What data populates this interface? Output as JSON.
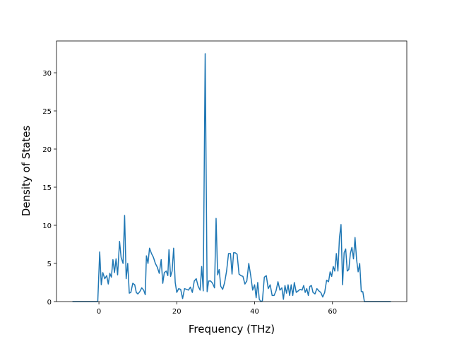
{
  "chart_data": {
    "type": "line",
    "xlabel": "Frequency (THz)",
    "ylabel": "Density of States",
    "xlim": [
      -10.9,
      79.1
    ],
    "ylim": [
      0,
      34.17
    ],
    "xticks": [
      0,
      20,
      40,
      60
    ],
    "yticks": [
      0,
      5,
      10,
      15,
      20,
      25,
      30
    ],
    "grid": false,
    "series": [
      {
        "color": "#1f77b4",
        "x": [
          -6.8,
          -0.3,
          0.2,
          0.6,
          1,
          1.5,
          2,
          2.4,
          2.8,
          3.2,
          3.6,
          4,
          4.4,
          4.8,
          5.3,
          5.7,
          6.2,
          6.6,
          7,
          7.4,
          7.8,
          8.2,
          8.7,
          9.2,
          9.6,
          10,
          10.5,
          11,
          11.5,
          11.9,
          12.2,
          12.6,
          13,
          13.5,
          14,
          14.5,
          15,
          15.5,
          16,
          16.4,
          16.8,
          17.3,
          17.7,
          18,
          18.4,
          18.8,
          19.2,
          19.6,
          20,
          20.5,
          21,
          21.5,
          22,
          22.5,
          23,
          23.5,
          24,
          24.5,
          25,
          25.5,
          26,
          26.4,
          26.8,
          27.3,
          27.8,
          28.2,
          28.7,
          29.2,
          29.7,
          30.1,
          30.5,
          30.9,
          31.3,
          31.8,
          32.3,
          32.8,
          33.3,
          33.8,
          34.2,
          34.6,
          35,
          35.5,
          36,
          36.5,
          37,
          37.5,
          38,
          38.5,
          39,
          39.5,
          40,
          40.4,
          40.8,
          41.2,
          41.6,
          42,
          42.5,
          43,
          43.5,
          44,
          44.5,
          45,
          45.5,
          46,
          46.5,
          47,
          47.4,
          47.8,
          48.2,
          48.6,
          49,
          49.4,
          49.8,
          50.2,
          50.7,
          51.2,
          51.7,
          52.2,
          52.6,
          53,
          53.4,
          53.8,
          54.2,
          54.6,
          55,
          55.5,
          56,
          56.5,
          57,
          57.5,
          58,
          58.5,
          59,
          59.4,
          59.8,
          60.2,
          60.6,
          61,
          61.4,
          61.8,
          62.2,
          62.6,
          63,
          63.4,
          63.8,
          64.2,
          64.6,
          65,
          65.4,
          65.8,
          66.2,
          66.6,
          67,
          67.4,
          67.8,
          68.2,
          75
        ],
        "values": [
          0,
          0,
          6.5,
          2.2,
          3.8,
          3.0,
          3.4,
          2.3,
          3.7,
          3.2,
          5.5,
          3.8,
          5.6,
          3.5,
          7.9,
          5.8,
          5.0,
          11.3,
          3.0,
          5.0,
          1.1,
          1.2,
          2.4,
          2.2,
          1.2,
          1.0,
          1.3,
          1.8,
          1.5,
          0.9,
          6.0,
          5.0,
          7.0,
          6.3,
          5.8,
          5.0,
          4.5,
          3.7,
          5.5,
          2.4,
          3.8,
          4.0,
          3.4,
          6.8,
          3.3,
          4.0,
          7.0,
          2.5,
          1.2,
          1.7,
          1.6,
          0.4,
          1.7,
          1.6,
          1.5,
          1.9,
          1.2,
          2.7,
          3.0,
          2.0,
          1.5,
          4.6,
          1.4,
          32.5,
          1.3,
          2.7,
          2.7,
          2.4,
          1.8,
          10.9,
          3.5,
          4.2,
          2.0,
          1.6,
          2.5,
          4.0,
          6.3,
          6.3,
          3.6,
          6.4,
          6.4,
          6.2,
          3.6,
          3.4,
          3.3,
          2.3,
          2.7,
          5.0,
          3.4,
          1.5,
          2.2,
          0.5,
          2.5,
          0.3,
          0,
          0.1,
          3.2,
          3.4,
          1.7,
          2.2,
          0.8,
          0.8,
          1.4,
          2.6,
          1.5,
          1.8,
          0.3,
          2.1,
          1.1,
          2.2,
          0.8,
          2.2,
          0.8,
          2.5,
          1.2,
          1.4,
          1.6,
          1.5,
          2.1,
          1.2,
          1.7,
          0.8,
          2.0,
          2.1,
          1.2,
          1.0,
          1.7,
          1.4,
          1.2,
          0.6,
          1.2,
          2.8,
          2.6,
          3.9,
          3.3,
          4.6,
          4.0,
          6.3,
          4.0,
          8.4,
          10.1,
          2.2,
          6.4,
          6.9,
          4.0,
          4.2,
          6.3,
          7.1,
          5.6,
          8.4,
          5.5,
          3.9,
          5.0,
          1.3,
          1.3,
          0,
          0
        ]
      }
    ]
  }
}
